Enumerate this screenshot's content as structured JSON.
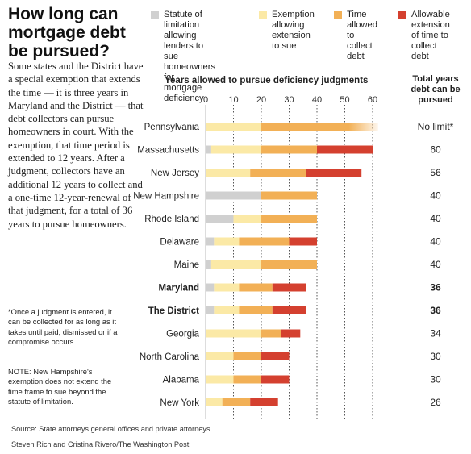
{
  "headline": [
    "How long can",
    "mortgage debt",
    "be pursued?"
  ],
  "intro": "Some states and the District have a special exemption that extends the time — it is three years in Maryland and the District — that debt collectors can pursue homeowners in court. With the exemption, that time period is extended to 12 years. After a judgment, collectors have an additional 12 years to collect and a one-time 12-year-renewal of that judgment, for a total of 36 years to pursue homeowners.",
  "footnote": "*Once a judgment is entered, it can be collected for as long as it takes until paid, dismissed or if a compromise occurs.",
  "nh_note": "NOTE: New Hampshire's exemption does not extend the time frame to sue beyond the statute of limitation.",
  "legend": [
    {
      "lines": [
        "Statute of limitation",
        "allowing lenders to",
        "sue homeowners for",
        "mortgage deficiency"
      ],
      "color": "#d0d0d0"
    },
    {
      "lines": [
        "Exemption",
        "allowing",
        "extension",
        "to sue"
      ],
      "color": "#fbe9a6"
    },
    {
      "lines": [
        "Time",
        "allowed",
        "to collect",
        "debt"
      ],
      "color": "#f2b056"
    },
    {
      "lines": [
        "Allowable",
        "extension",
        "of time to",
        "collect debt"
      ],
      "color": "#d4402f"
    }
  ],
  "source": "Source: State attorneys general offices and private attorneys",
  "credit": "Steven Rich and Cristina Rivero/The Washington Post",
  "chart_data": {
    "type": "bar",
    "stacked": true,
    "orientation": "horizontal",
    "title": "Years allowed to pursue deficiency judgments",
    "xlim": [
      0,
      60
    ],
    "xticks": [
      0,
      10,
      20,
      30,
      40,
      50,
      60
    ],
    "grid": "dotted vertical",
    "total_header": [
      "Total years",
      "debt can be",
      "pursued"
    ],
    "categories": [
      "Pennsylvania",
      "Massachusetts",
      "New Jersey",
      "New Hampshire",
      "Rhode Island",
      "Delaware",
      "Maine",
      "Maryland",
      "The District",
      "Georgia",
      "North Carolina",
      "Alabama",
      "New York"
    ],
    "bold_categories": [
      "Maryland",
      "The District"
    ],
    "series": [
      {
        "name": "Statute of limitation allowing lenders to sue homeowners for mortgage deficiency",
        "color": "#d0d0d0",
        "values": [
          0,
          2,
          0,
          20,
          10,
          3,
          2,
          3,
          3,
          0,
          0,
          0,
          0
        ]
      },
      {
        "name": "Exemption allowing extension to sue",
        "color": "#fbe9a6",
        "values": [
          20,
          18,
          16,
          0,
          10,
          9,
          18,
          9,
          9,
          20,
          10,
          10,
          6
        ]
      },
      {
        "name": "Time allowed to collect debt",
        "color": "#f2b056",
        "values": [
          42,
          20,
          20,
          20,
          20,
          18,
          20,
          12,
          12,
          7,
          10,
          10,
          10
        ]
      },
      {
        "name": "Allowable extension of time to collect debt",
        "color": "#d4402f",
        "values": [
          0,
          20,
          20,
          0,
          0,
          10,
          0,
          12,
          12,
          7,
          10,
          10,
          10
        ]
      }
    ],
    "fade_last_segment": [
      "Pennsylvania"
    ],
    "totals": [
      "No limit*",
      "60",
      "56",
      "40",
      "40",
      "40",
      "40",
      "36",
      "36",
      "34",
      "30",
      "30",
      "26"
    ]
  }
}
